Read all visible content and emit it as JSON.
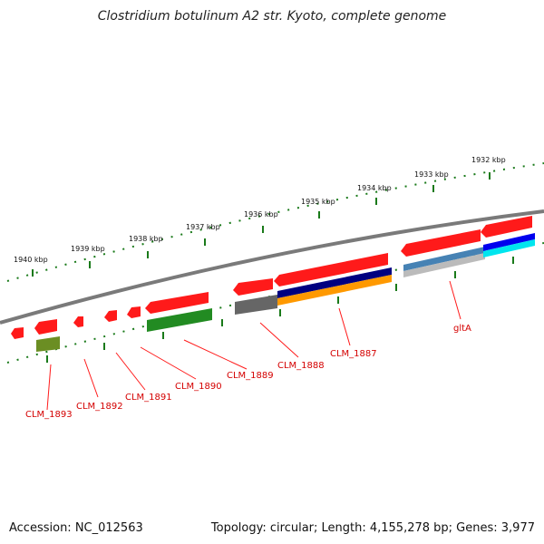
{
  "title": "Clostridium botulinum A2 str. Kyoto, complete genome",
  "footer": {
    "accession": "Accession: NC_012563",
    "summary": "Topology: circular; Length: 4,155,278 bp; Genes: 3,977"
  },
  "ruler": {
    "ticks": [
      "1940 kbp",
      "1939 kbp",
      "1938 kbp",
      "1937 kbp",
      "1936 kbp",
      "1935 kbp",
      "1934 kbp",
      "1933 kbp",
      "1932 kbp"
    ]
  },
  "genes": [
    {
      "label": "CLM_1893"
    },
    {
      "label": "CLM_1892"
    },
    {
      "label": "CLM_1891"
    },
    {
      "label": "CLM_1890"
    },
    {
      "label": "CLM_1889"
    },
    {
      "label": "CLM_1888"
    },
    {
      "label": "CLM_1887"
    },
    {
      "label": "gltA"
    }
  ],
  "colors": {
    "backbone": "#7a7a7a",
    "gene_red": "#ff1a1a",
    "label_red": "#d40000",
    "tick_green": "#1a7a1a",
    "green_feature": "#228b22",
    "olive_feature": "#6b8e23",
    "gray_feature": "#666666",
    "navy_feature": "#000080",
    "orange_feature": "#ff9900",
    "steel_feature": "#4682b4",
    "silver_feature": "#bbbbbb",
    "blue_feature": "#0000ee",
    "cyan_feature": "#00e5ee"
  }
}
